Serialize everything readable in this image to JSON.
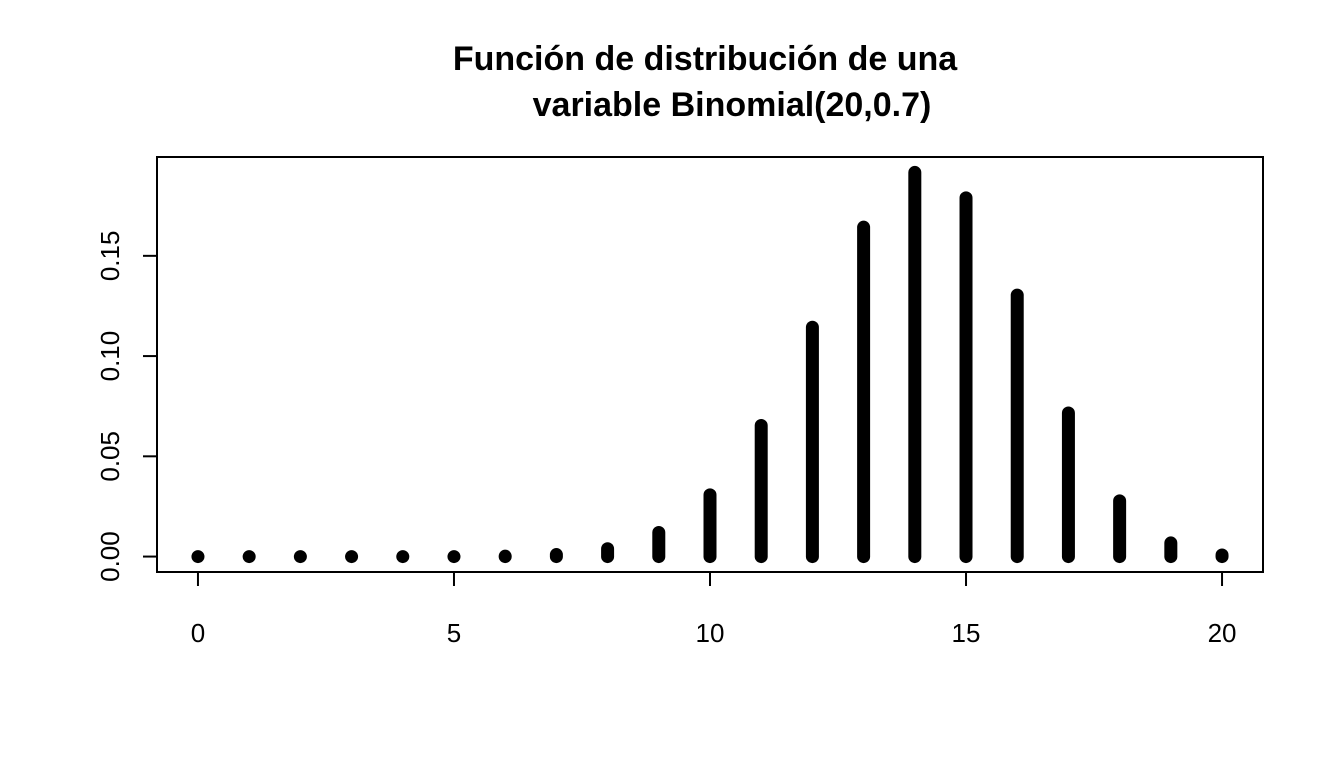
{
  "chart_data": {
    "type": "bar",
    "title_lines": [
      "Función de distribución de una",
      "variable Binomial(20,0.7)"
    ],
    "xlabel": "",
    "ylabel": "",
    "x": [
      0,
      1,
      2,
      3,
      4,
      5,
      6,
      7,
      8,
      9,
      10,
      11,
      12,
      13,
      14,
      15,
      16,
      17,
      18,
      19,
      20
    ],
    "values": [
      0.0,
      0.0,
      0.0,
      0.0,
      0.0,
      0.0,
      0.0002,
      0.001,
      0.0039,
      0.012,
      0.0308,
      0.0654,
      0.1144,
      0.1643,
      0.1916,
      0.1789,
      0.1304,
      0.0716,
      0.0278,
      0.0068,
      0.0008
    ],
    "xlim": [
      -0.8,
      20.8
    ],
    "ylim": [
      -0.0077,
      0.1993
    ],
    "x_ticks": [
      0,
      5,
      10,
      15,
      20
    ],
    "x_tick_labels": [
      "0",
      "5",
      "10",
      "15",
      "20"
    ],
    "y_ticks": [
      0,
      0.05,
      0.1,
      0.15
    ],
    "y_tick_labels": [
      "0.00",
      "0.05",
      "0.10",
      "0.15"
    ],
    "grid": false,
    "legend": "none",
    "bar_color": "#000000"
  }
}
